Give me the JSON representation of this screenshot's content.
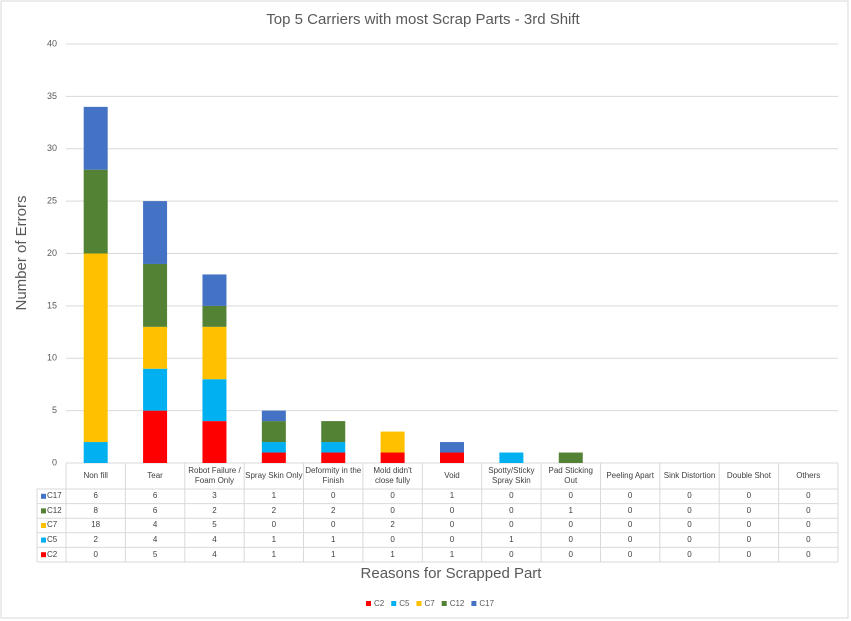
{
  "chart_data": {
    "type": "stacked_bar",
    "title": "Top 5 Carriers with most Scrap Parts - 3rd Shift",
    "y_label": "Number of Errors",
    "x_label": "Reasons for Scrapped Part",
    "categories": [
      "Non fill",
      "Tear",
      "Robot Failure / Foam Only",
      "Spray Skin Only",
      "Deformity in the Finish",
      "Mold didn't close fully",
      "Void",
      "Spotty/Sticky Spray Skin",
      "Pad Sticking Out",
      "Peeling Apart",
      "Sink Distortion",
      "Double Shot",
      "Others"
    ],
    "series": [
      {
        "name": "C2",
        "color": "#ff0000",
        "values": [
          0,
          5,
          4,
          1,
          1,
          1,
          1,
          0,
          0,
          0,
          0,
          0,
          0
        ]
      },
      {
        "name": "C5",
        "color": "#00b0f0",
        "values": [
          2,
          4,
          4,
          1,
          1,
          0,
          0,
          1,
          0,
          0,
          0,
          0,
          0
        ]
      },
      {
        "name": "C7",
        "color": "#ffc000",
        "values": [
          18,
          4,
          5,
          0,
          0,
          2,
          0,
          0,
          0,
          0,
          0,
          0,
          0
        ]
      },
      {
        "name": "C12",
        "color": "#548235",
        "values": [
          8,
          6,
          2,
          2,
          2,
          0,
          0,
          0,
          1,
          0,
          0,
          0,
          0
        ]
      },
      {
        "name": "C17",
        "color": "#4472c4",
        "values": [
          6,
          6,
          3,
          1,
          0,
          0,
          1,
          0,
          0,
          0,
          0,
          0,
          0
        ]
      }
    ],
    "ylim": [
      0,
      40
    ],
    "yticks": [
      0,
      5,
      10,
      15,
      20,
      25,
      30,
      35,
      40
    ],
    "grid": true,
    "legend": "bottom"
  }
}
